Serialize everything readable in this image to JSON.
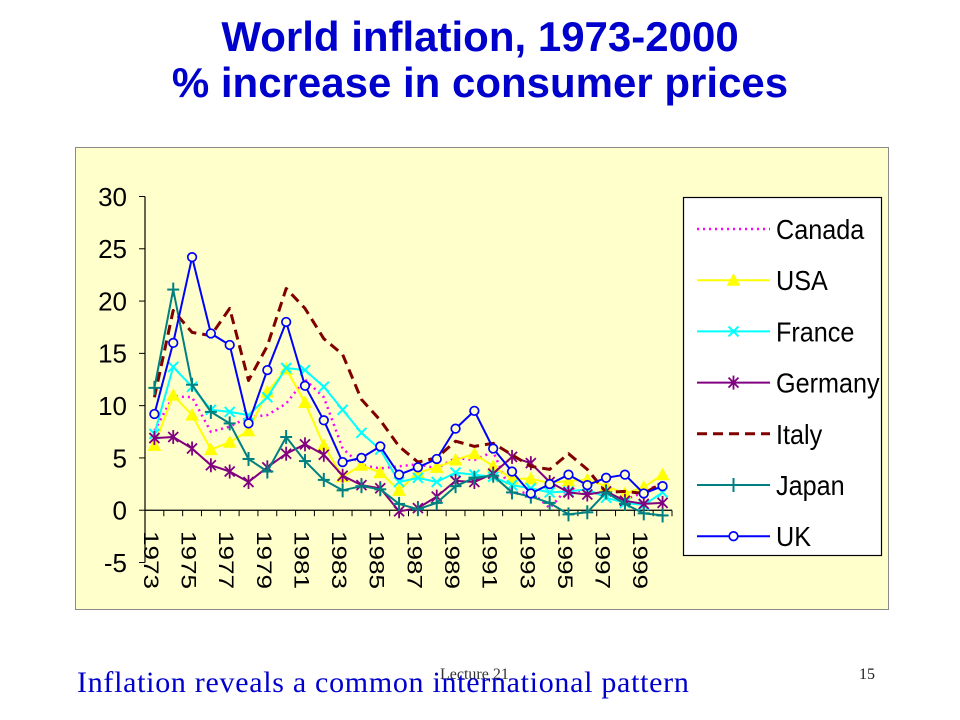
{
  "slide": {
    "title_line1": "World inflation, 1973-2000",
    "title_line2": "% increase in consumer prices",
    "caption": "Inflation reveals a common international pattern",
    "footer_label": "Lecture 21",
    "page_number": "15",
    "title_color": "#0000CC",
    "chart_background": "#FFFFCC"
  },
  "chart_data": {
    "type": "line",
    "x": [
      1973,
      1974,
      1975,
      1976,
      1977,
      1978,
      1979,
      1980,
      1981,
      1982,
      1983,
      1984,
      1985,
      1986,
      1987,
      1988,
      1989,
      1990,
      1991,
      1992,
      1993,
      1994,
      1995,
      1996,
      1997,
      1998,
      1999,
      2000
    ],
    "x_tick_labels": [
      "1973",
      "1975",
      "1977",
      "1979",
      "1981",
      "1983",
      "1985",
      "1987",
      "1989",
      "1991",
      "1993",
      "1995",
      "1997",
      "1999"
    ],
    "y_ticks": [
      30,
      25,
      20,
      15,
      10,
      5,
      0,
      -5
    ],
    "ylim": [
      -5,
      30
    ],
    "grid": false,
    "legend_position": "right",
    "series": [
      {
        "name": "Canada",
        "color": "#FF00FF",
        "line_style": "dotted",
        "marker": "none",
        "values": [
          7.6,
          10.9,
          10.8,
          7.5,
          8.0,
          8.9,
          9.1,
          10.2,
          12.5,
          10.8,
          5.9,
          4.3,
          4.0,
          4.2,
          4.4,
          4.0,
          5.0,
          4.8,
          5.6,
          1.5,
          1.8,
          0.2,
          2.2,
          1.6,
          1.6,
          1.0,
          1.7,
          2.7
        ]
      },
      {
        "name": "USA",
        "color": "#FFFF00",
        "line_style": "solid",
        "marker": "triangle",
        "values": [
          6.2,
          11.0,
          9.1,
          5.8,
          6.5,
          7.6,
          11.3,
          13.5,
          10.3,
          6.2,
          3.2,
          4.3,
          3.6,
          1.9,
          3.6,
          4.1,
          4.8,
          5.4,
          4.2,
          3.0,
          3.0,
          2.6,
          2.8,
          2.9,
          2.3,
          1.6,
          2.2,
          3.4
        ]
      },
      {
        "name": "France",
        "color": "#00FFFF",
        "line_style": "solid",
        "marker": "x",
        "values": [
          7.3,
          13.7,
          11.8,
          9.6,
          9.4,
          9.1,
          10.8,
          13.6,
          13.4,
          11.8,
          9.6,
          7.4,
          5.8,
          2.7,
          3.1,
          2.7,
          3.6,
          3.4,
          3.2,
          2.4,
          2.1,
          1.7,
          1.8,
          2.0,
          1.2,
          0.7,
          0.5,
          1.7
        ]
      },
      {
        "name": "Germany",
        "color": "#800080",
        "line_style": "solid",
        "marker": "star",
        "values": [
          6.9,
          7.0,
          5.9,
          4.3,
          3.7,
          2.7,
          4.1,
          5.4,
          6.3,
          5.3,
          3.3,
          2.4,
          2.1,
          -0.1,
          0.2,
          1.3,
          2.8,
          2.7,
          3.5,
          5.1,
          4.5,
          2.7,
          1.7,
          1.5,
          1.8,
          0.9,
          0.6,
          0.7
        ]
      },
      {
        "name": "Italy",
        "color": "#800000",
        "line_style": "dashed",
        "marker": "none",
        "values": [
          10.8,
          19.1,
          17.0,
          16.7,
          19.3,
          12.4,
          15.7,
          21.2,
          19.3,
          16.4,
          14.9,
          10.6,
          8.6,
          6.1,
          4.6,
          5.0,
          6.6,
          6.1,
          6.4,
          5.3,
          4.2,
          3.9,
          5.4,
          3.9,
          1.7,
          1.8,
          1.6,
          2.6
        ]
      },
      {
        "name": "Japan",
        "color": "#008080",
        "line_style": "solid",
        "marker": "plus",
        "values": [
          11.7,
          21.1,
          12.0,
          9.4,
          8.3,
          4.9,
          3.7,
          7.0,
          4.7,
          2.9,
          1.9,
          2.3,
          2.0,
          0.6,
          0.1,
          0.7,
          2.3,
          3.1,
          3.3,
          1.7,
          1.3,
          0.7,
          -0.4,
          -0.2,
          1.7,
          0.6,
          -0.3,
          -0.5
        ]
      },
      {
        "name": "UK",
        "color": "#0000FF",
        "line_style": "solid",
        "marker": "circle",
        "values": [
          9.2,
          16.0,
          24.2,
          16.9,
          15.8,
          8.3,
          13.4,
          18.0,
          11.9,
          8.6,
          4.6,
          5.0,
          6.1,
          3.4,
          4.1,
          4.9,
          7.8,
          9.5,
          5.9,
          3.7,
          1.6,
          2.5,
          3.4,
          2.4,
          3.1,
          3.4,
          1.6,
          2.3
        ]
      }
    ]
  }
}
